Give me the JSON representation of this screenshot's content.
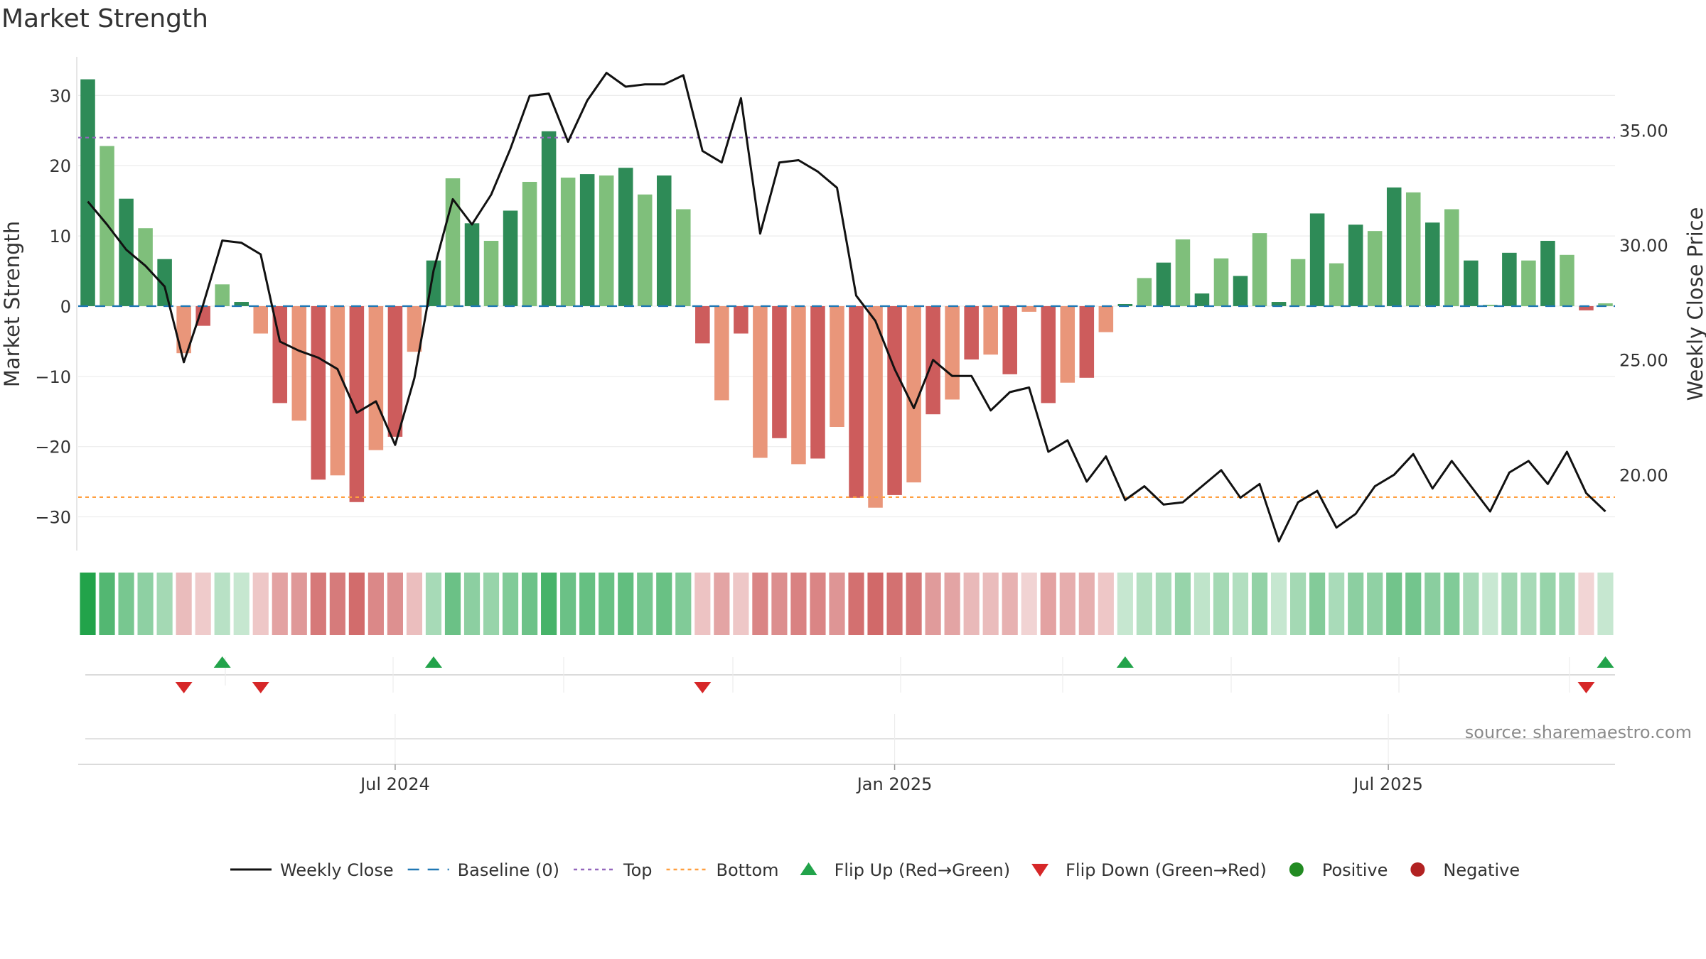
{
  "chart_data": {
    "type": "bar+line",
    "title": "Market Strength",
    "ylabel": "Market Strength",
    "y2label": "Weekly Close Price",
    "ylim": [
      -34.8,
      35.5
    ],
    "y2lim": [
      16.7,
      38.2
    ],
    "yticks": [
      30,
      20,
      10,
      0,
      -10,
      -20,
      -30
    ],
    "yticklabels": [
      "30",
      "20",
      "10",
      "0",
      "−10",
      "−20",
      "−30"
    ],
    "y2ticks": [
      35,
      30,
      25,
      20
    ],
    "y2ticklabels": [
      "35.00",
      "30.00",
      "25.00",
      "20.00"
    ],
    "top_line": 24,
    "bottom_line": -27.2,
    "x_date_labels": [
      {
        "week": 16.5,
        "label": "Jul 2024"
      },
      {
        "week": 42.5,
        "label": "Jan 2025"
      },
      {
        "week": 68.2,
        "label": "Jul 2025"
      }
    ],
    "strength": [
      32.3,
      22.8,
      15.3,
      11.1,
      6.7,
      -6.7,
      -2.8,
      3.1,
      0.6,
      -3.9,
      -13.8,
      -16.3,
      -24.7,
      -24.1,
      -27.9,
      -20.5,
      -18.6,
      -6.5,
      6.5,
      18.2,
      11.8,
      9.3,
      13.6,
      17.7,
      24.9,
      18.3,
      18.8,
      18.6,
      19.7,
      15.9,
      18.6,
      13.8,
      -5.3,
      -13.4,
      -3.9,
      -21.6,
      -18.8,
      -22.5,
      -21.7,
      -17.2,
      -27.3,
      -28.7,
      -26.9,
      -25.1,
      -15.4,
      -13.3,
      -7.6,
      -6.9,
      -9.7,
      -0.8,
      -13.8,
      -10.9,
      -10.2,
      -3.7,
      0.3,
      4.0,
      6.2,
      9.5,
      1.8,
      6.8,
      4.3,
      10.4,
      0.6,
      6.7,
      13.2,
      6.1,
      11.6,
      10.7,
      16.9,
      16.2,
      11.9,
      13.8,
      6.5,
      0.2,
      7.6,
      6.5,
      9.3,
      7.3,
      -0.6,
      0.4
    ],
    "weekly_close": [
      31.9,
      30.9,
      29.8,
      29.1,
      28.2,
      24.9,
      27.4,
      30.2,
      30.1,
      29.6,
      25.8,
      25.4,
      25.1,
      24.6,
      22.7,
      23.2,
      21.3,
      24.2,
      28.9,
      32.0,
      30.9,
      32.2,
      34.2,
      36.5,
      36.6,
      34.5,
      36.3,
      37.5,
      36.9,
      37.0,
      37.0,
      37.4,
      34.1,
      33.6,
      36.4,
      30.5,
      33.6,
      33.7,
      33.2,
      32.5,
      27.8,
      26.7,
      24.6,
      22.9,
      25.0,
      24.3,
      24.3,
      22.8,
      23.6,
      23.8,
      21.0,
      21.5,
      19.7,
      20.8,
      18.9,
      19.5,
      18.7,
      18.8,
      19.5,
      20.2,
      19.0,
      19.6,
      17.1,
      18.8,
      19.3,
      17.7,
      18.3,
      19.5,
      20.0,
      20.9,
      19.4,
      20.6,
      19.5,
      18.4,
      20.1,
      20.6,
      19.6,
      21.0,
      19.2,
      18.4
    ],
    "flip_up_weeks": [
      7,
      18,
      54,
      79
    ],
    "flip_down_weeks": [
      5,
      9,
      32,
      78
    ],
    "source": "source: sharemaestro.com",
    "colors": {
      "green_dark": "#2e8b57",
      "green_light": "#7fbf7b",
      "red_dark": "#cd5c5c",
      "red_light": "#e9967a",
      "weekly_close": "#111111",
      "baseline": "#1f77b4",
      "top": "#9467bd",
      "bottom": "#ff9f40",
      "flip_up": "#22a34a",
      "flip_down": "#d62728",
      "positive": "#228b22",
      "negative": "#b22222"
    },
    "legend": [
      {
        "key": "weekly_close",
        "label": "Weekly Close",
        "marker": "line"
      },
      {
        "key": "baseline",
        "label": "Baseline (0)",
        "marker": "dash"
      },
      {
        "key": "top",
        "label": "Top",
        "marker": "dot"
      },
      {
        "key": "bottom",
        "label": "Bottom",
        "marker": "dot"
      },
      {
        "key": "flip_up",
        "label": "Flip Up (Red→Green)",
        "marker": "tri-up"
      },
      {
        "key": "flip_down",
        "label": "Flip Down (Green→Red)",
        "marker": "tri-down"
      },
      {
        "key": "positive",
        "label": "Positive",
        "marker": "circle"
      },
      {
        "key": "negative",
        "label": "Negative",
        "marker": "circle"
      }
    ]
  }
}
